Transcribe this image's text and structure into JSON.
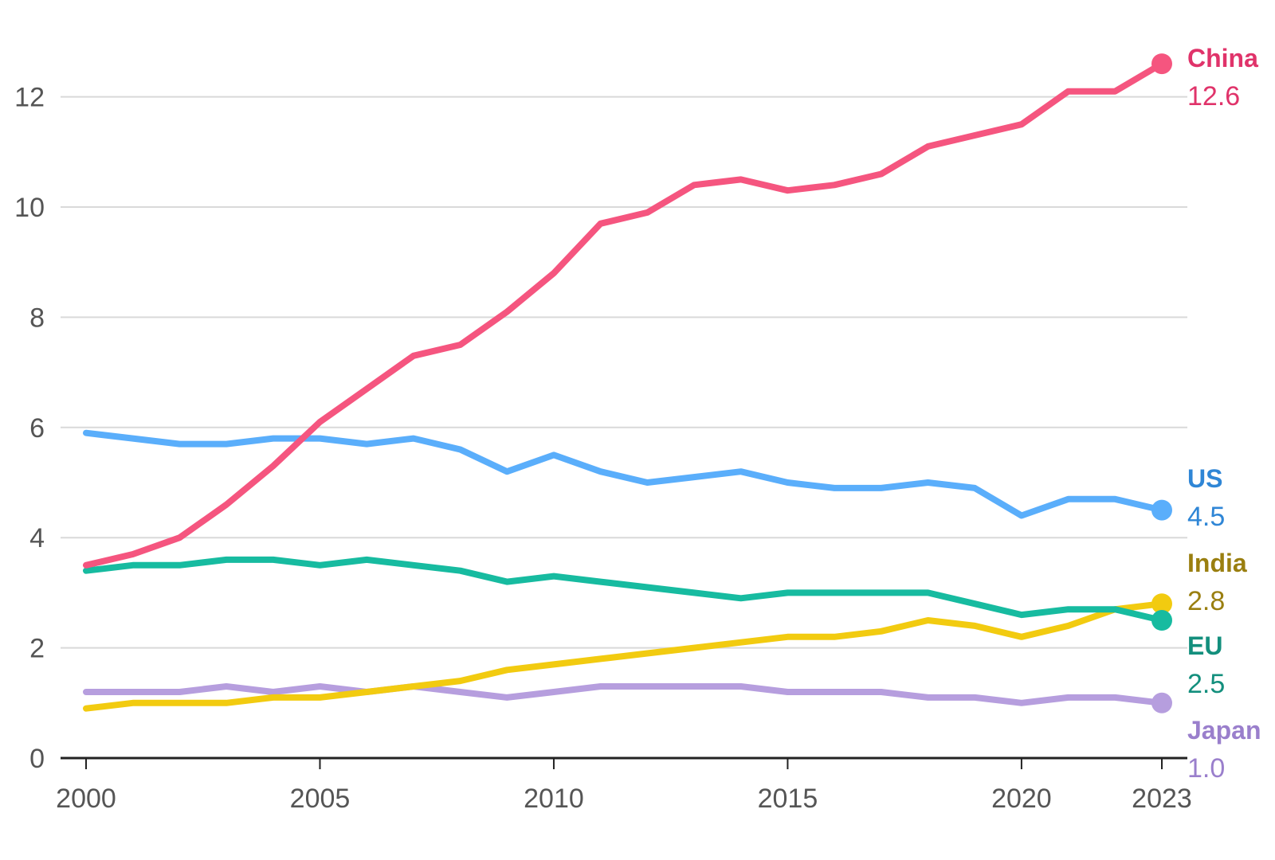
{
  "chart_data": {
    "type": "line",
    "title": "",
    "xlabel": "",
    "ylabel": "",
    "xlim": [
      2000,
      2023
    ],
    "ylim": [
      0,
      13
    ],
    "grid": true,
    "x": [
      2000,
      2001,
      2002,
      2003,
      2004,
      2005,
      2006,
      2007,
      2008,
      2009,
      2010,
      2011,
      2012,
      2013,
      2014,
      2015,
      2016,
      2017,
      2018,
      2019,
      2020,
      2021,
      2022,
      2023
    ],
    "x_ticks": [
      "2000",
      "2005",
      "2010",
      "2015",
      "2020",
      "2023"
    ],
    "y_ticks": [
      "0",
      "2",
      "4",
      "6",
      "8",
      "10",
      "12"
    ],
    "series": [
      {
        "name": "China",
        "color": "#f5557f",
        "label_color": "#e0336a",
        "value_label": "12.6",
        "values": [
          3.5,
          3.7,
          4.0,
          4.6,
          5.3,
          6.1,
          6.7,
          7.3,
          7.5,
          8.1,
          8.8,
          9.7,
          9.9,
          10.4,
          10.5,
          10.3,
          10.4,
          10.6,
          11.1,
          11.3,
          11.5,
          12.1,
          12.1,
          12.6
        ]
      },
      {
        "name": "US",
        "color": "#5aaefb",
        "label_color": "#2f86d6",
        "value_label": "4.5",
        "values": [
          5.9,
          5.8,
          5.7,
          5.7,
          5.8,
          5.8,
          5.7,
          5.8,
          5.6,
          5.2,
          5.5,
          5.2,
          5.0,
          5.1,
          5.2,
          5.0,
          4.9,
          4.9,
          5.0,
          4.9,
          4.4,
          4.7,
          4.7,
          4.5
        ]
      },
      {
        "name": "India",
        "color": "#f2cb10",
        "label_color": "#9a7f10",
        "value_label": "2.8",
        "values": [
          0.9,
          1.0,
          1.0,
          1.0,
          1.1,
          1.1,
          1.2,
          1.3,
          1.4,
          1.6,
          1.7,
          1.8,
          1.9,
          2.0,
          2.1,
          2.2,
          2.2,
          2.3,
          2.5,
          2.4,
          2.2,
          2.4,
          2.7,
          2.8
        ]
      },
      {
        "name": "EU",
        "color": "#17bba0",
        "label_color": "#138f7d",
        "value_label": "2.5",
        "values": [
          3.4,
          3.5,
          3.5,
          3.6,
          3.6,
          3.5,
          3.6,
          3.5,
          3.4,
          3.2,
          3.3,
          3.2,
          3.1,
          3.0,
          2.9,
          3.0,
          3.0,
          3.0,
          3.0,
          2.8,
          2.6,
          2.7,
          2.7,
          2.5
        ]
      },
      {
        "name": "Japan",
        "color": "#b69ede",
        "label_color": "#9a7fcc",
        "value_label": "1.0",
        "values": [
          1.2,
          1.2,
          1.2,
          1.3,
          1.2,
          1.3,
          1.2,
          1.3,
          1.2,
          1.1,
          1.2,
          1.3,
          1.3,
          1.3,
          1.3,
          1.2,
          1.2,
          1.2,
          1.1,
          1.1,
          1.0,
          1.1,
          1.1,
          1.0
        ]
      }
    ]
  }
}
